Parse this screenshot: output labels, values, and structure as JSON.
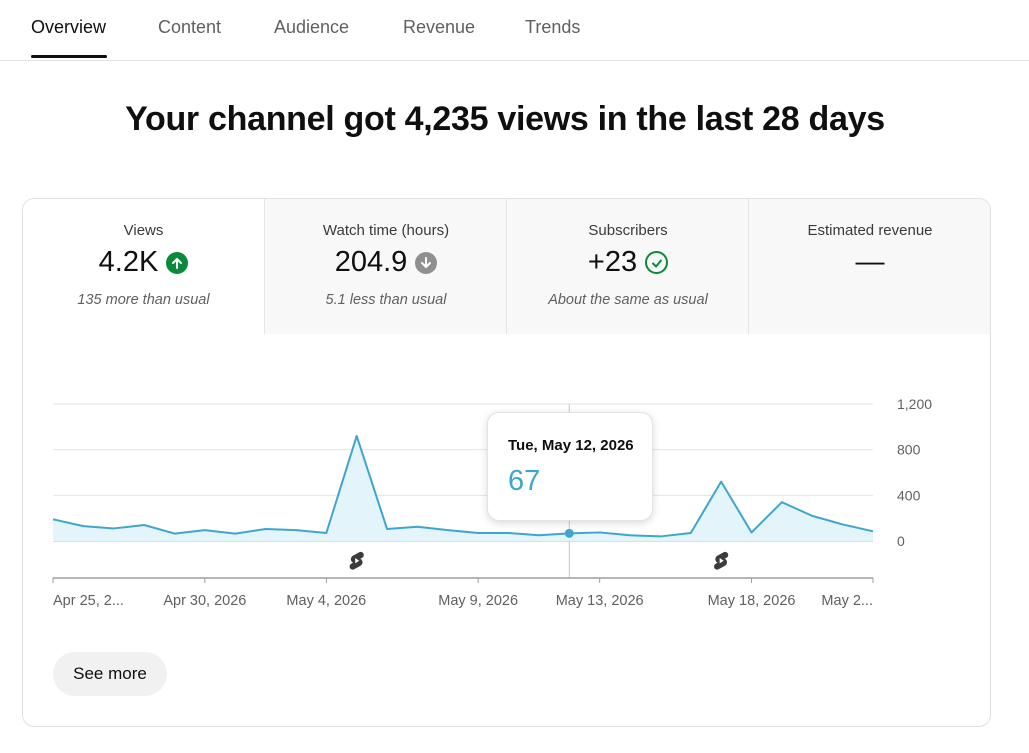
{
  "tabs": [
    {
      "label": "Overview"
    },
    {
      "label": "Content"
    },
    {
      "label": "Audience"
    },
    {
      "label": "Revenue"
    },
    {
      "label": "Trends"
    }
  ],
  "headline": "Your channel got 4,235 views in the last 28 days",
  "metrics": [
    {
      "label": "Views",
      "value": "4.2K",
      "note": "135 more than usual",
      "icon": "arrow-up-circle-icon"
    },
    {
      "label": "Watch time (hours)",
      "value": "204.9",
      "note": "5.1 less than usual",
      "icon": "arrow-down-circle-icon"
    },
    {
      "label": "Subscribers",
      "value": "+23",
      "note": "About the same as usual",
      "icon": "check-circle-icon"
    },
    {
      "label": "Estimated revenue",
      "value": "—",
      "note": ""
    }
  ],
  "tooltip": {
    "date": "Tue, May 12, 2026",
    "value": "67"
  },
  "see_more": "See more",
  "colors": {
    "line": "#3ea6cc",
    "fill": "#e3f4fa",
    "up": "#0a8a3a",
    "down": "#909090",
    "check": "#0a8a3a"
  },
  "chart_data": {
    "type": "area",
    "series": [
      {
        "values": [
          190,
          130,
          110,
          140,
          65,
          95,
          65,
          105,
          95,
          70,
          920,
          105,
          125,
          95,
          70,
          70,
          50,
          67,
          75,
          50,
          40,
          70,
          520,
          75,
          340,
          220,
          145,
          85
        ]
      }
    ],
    "x_start": "Apr 25, 2026",
    "x_end": "May 22, 2026",
    "x_tick_labels": [
      "Apr 25, 2...",
      "Apr 30, 2026",
      "May 4, 2026",
      "May 9, 2026",
      "May 13, 2026",
      "May 18, 2026",
      "May 2..."
    ],
    "y_ticks": [
      "1,200",
      "800",
      "400",
      "0"
    ],
    "ylim": [
      0,
      1200
    ],
    "highlight": {
      "date": "May 12, 2026",
      "value": 67
    },
    "markers": [
      {
        "date": "May 5, 2026",
        "icon": "shorts-icon"
      },
      {
        "date": "May 18, 2026",
        "icon": "shorts-icon"
      }
    ]
  }
}
